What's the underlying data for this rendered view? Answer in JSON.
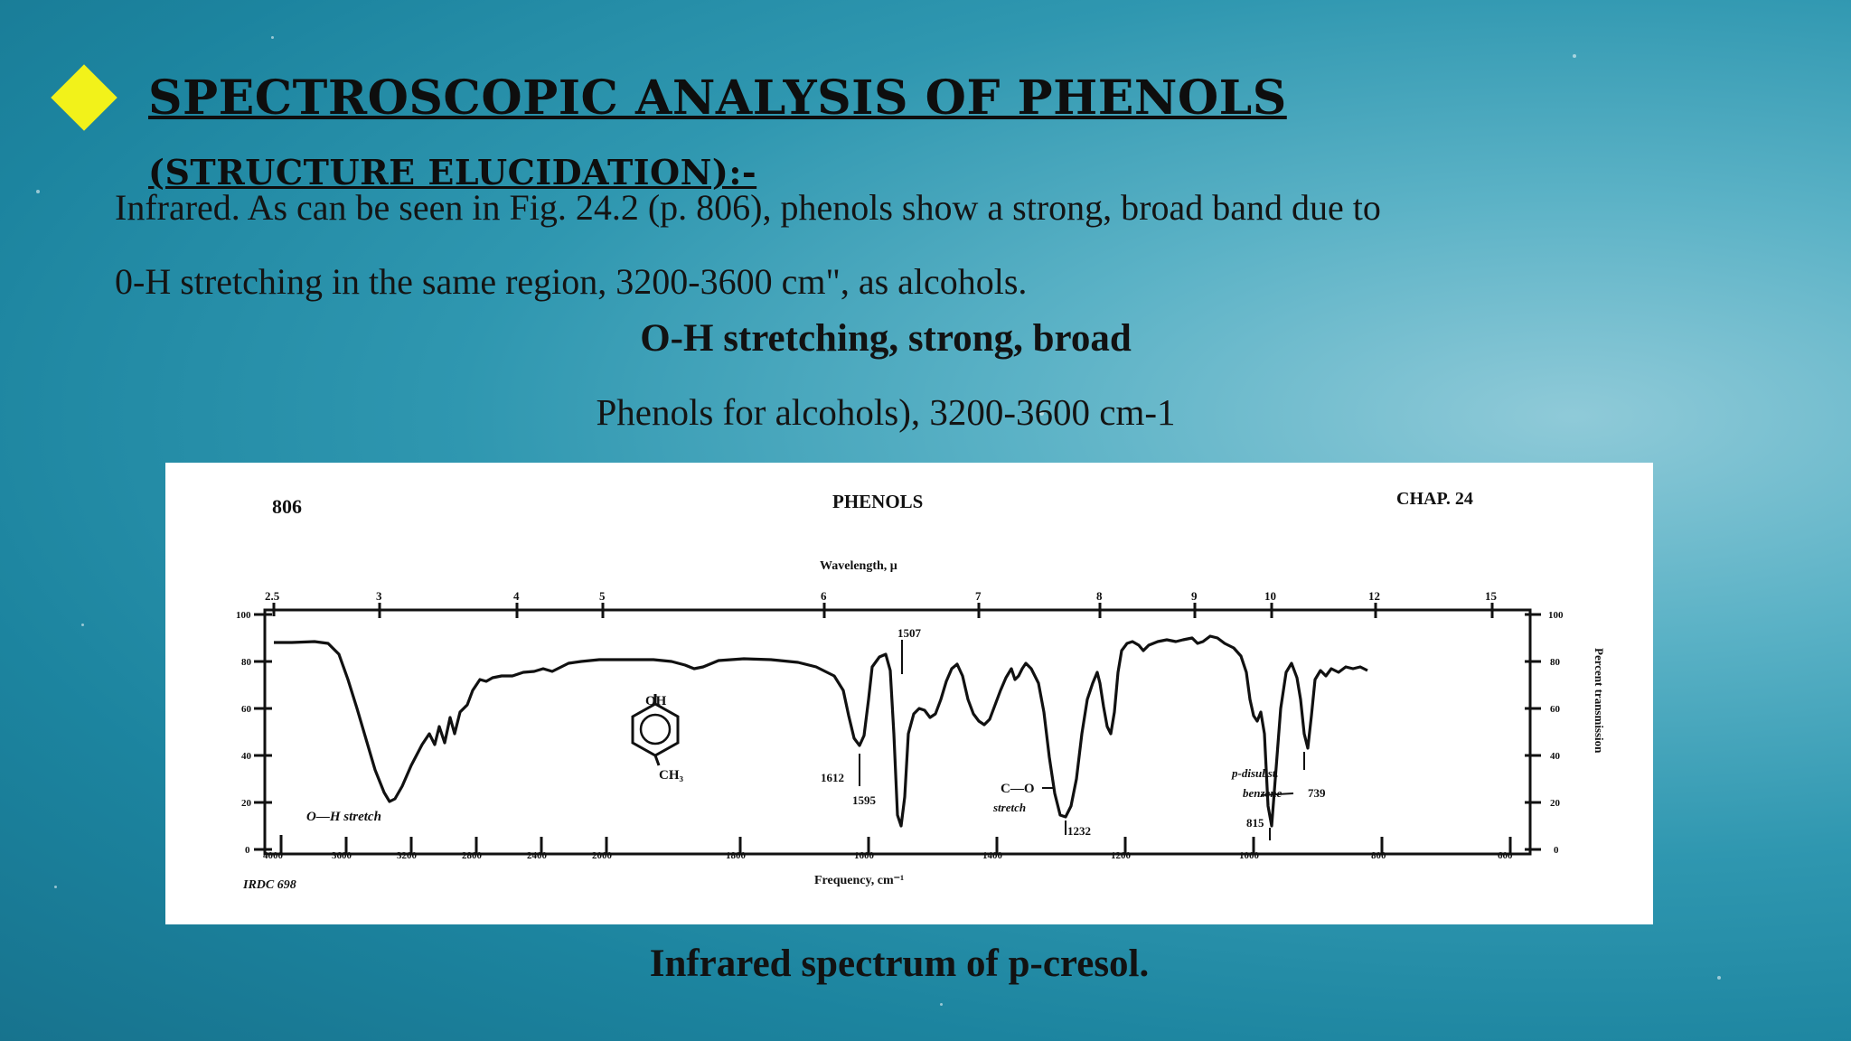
{
  "slide": {
    "title_main": "Spectroscopic analysis of Phenols",
    "title_paren": "(structure elucidation):-",
    "paragraph_line1": "Infrared. As can be seen in Fig. 24.2 (p. 806), phenols show a strong, broad band due to",
    "paragraph_line2": "0-H stretching in the same region, 3200-3600 cm\", as alcohols.",
    "heading": "O-H stretching, strong, broad",
    "subline": "Phenols for alcohols), 3200-3600 cm-1",
    "caption": "Infrared spectrum of p-cresol.",
    "bullet_color": "#f2f21a"
  },
  "figure": {
    "page_number": "806",
    "chapter_title": "PHENOLS",
    "chapter_label": "CHAP. 24",
    "top_axis_label": "Wavelength, μ",
    "top_ticks": [
      "2.5",
      "3",
      "4",
      "5",
      "6",
      "7",
      "8",
      "9",
      "10",
      "12",
      "15"
    ],
    "bottom_axis_label": "Frequency, cm⁻¹",
    "bottom_ticks": [
      "4000",
      "3600",
      "3200",
      "2800",
      "2400",
      "2000",
      "1800",
      "1600",
      "1400",
      "1200",
      "1000",
      "800",
      "600"
    ],
    "left_ticks": [
      "100",
      "80",
      "60",
      "40",
      "20",
      "0"
    ],
    "right_axis_label": "Percent transmission",
    "source_label": "IRDC 698",
    "molecule_labels": {
      "top": "OH",
      "bottom": "CH₃"
    },
    "annotations": {
      "oh_stretch": "O—H stretch",
      "co_stretch_line1": "C—O",
      "co_stretch_line2": "stretch",
      "p_disubst_line1": "p-disubst.",
      "p_disubst_line2": "benzene",
      "peak_1507": "1507",
      "peak_1612": "1612",
      "peak_1595": "1595",
      "peak_1232": "1232",
      "peak_815": "815",
      "peak_739": "739"
    }
  }
}
